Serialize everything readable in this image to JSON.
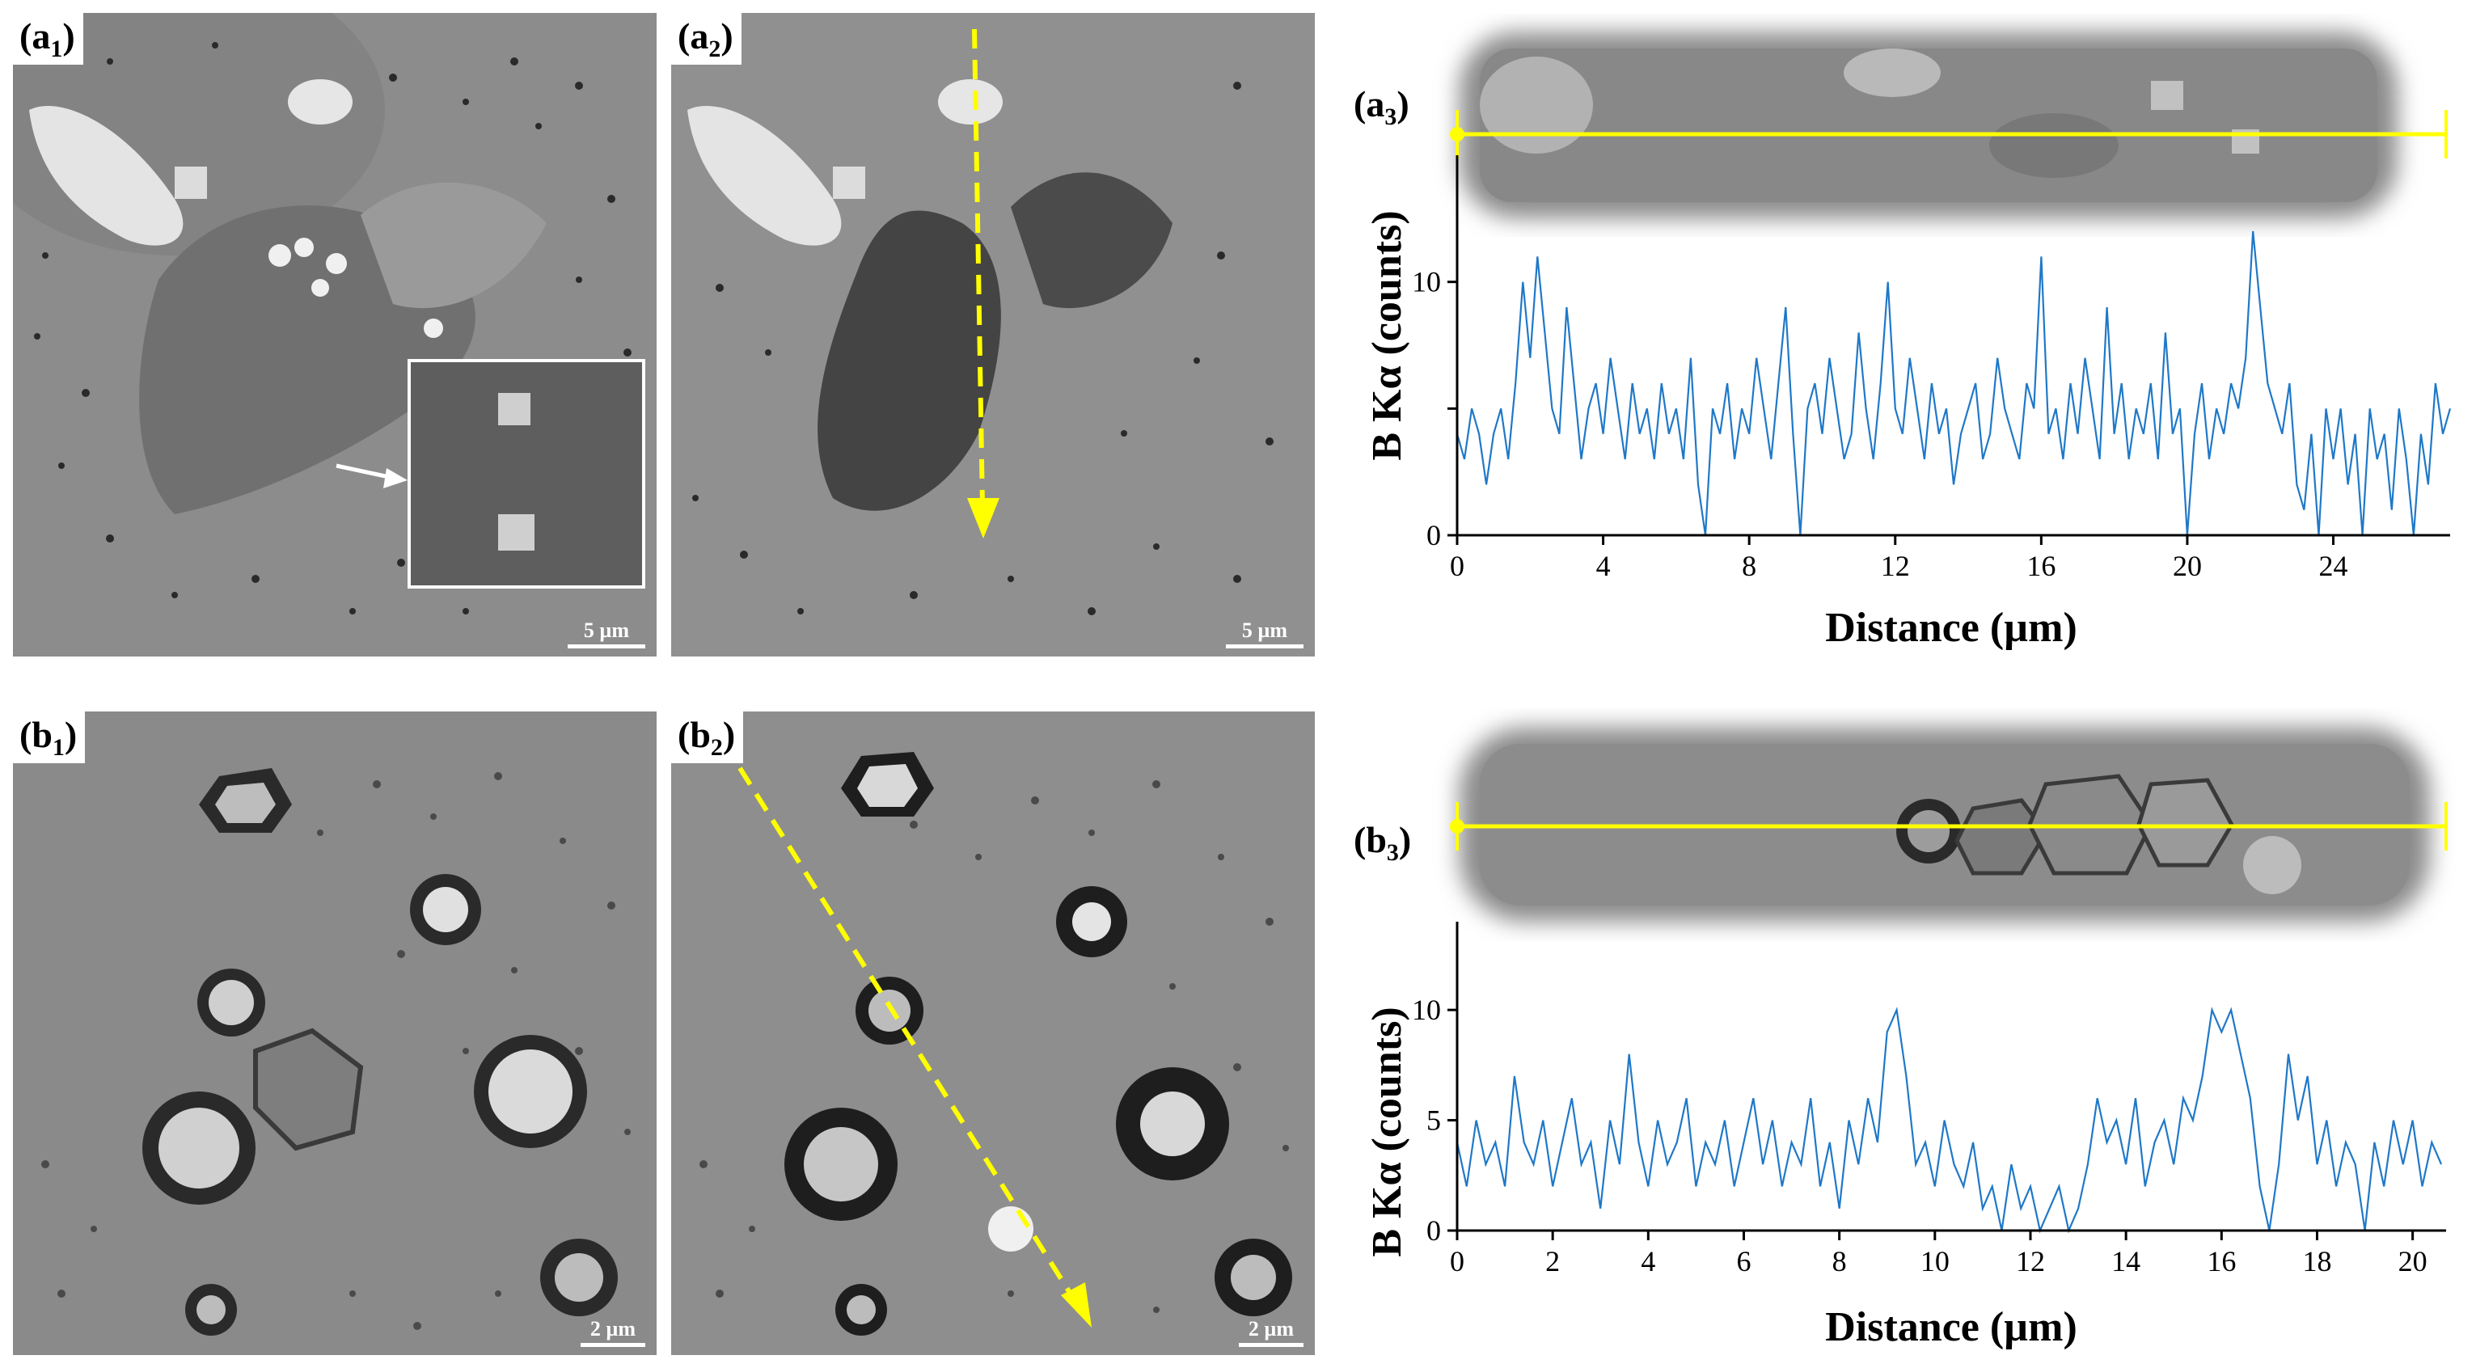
{
  "colors": {
    "trace": "#1f78c8",
    "linescan": "#ffff00",
    "arrow": "#ffff00",
    "inset_border": "#ffffff",
    "scale_text": "#ffffff"
  },
  "panels": {
    "a1": {
      "label_main": "(a",
      "label_sub": "1",
      "label_close": ")",
      "scale": "5 µm"
    },
    "a2": {
      "label_main": "(a",
      "label_sub": "2",
      "label_close": ")",
      "scale": "5 µm"
    },
    "a3": {
      "label_main": "(a",
      "label_sub": "3",
      "label_close": ")"
    },
    "b1": {
      "label_main": "(b",
      "label_sub": "1",
      "label_close": ")",
      "scale": "2 µm"
    },
    "b2": {
      "label_main": "(b",
      "label_sub": "2",
      "label_close": ")",
      "scale": "2 µm"
    },
    "b3": {
      "label_main": "(b",
      "label_sub": "3",
      "label_close": ")"
    }
  },
  "chart_data": [
    {
      "panel": "a3",
      "type": "line",
      "xlabel": "Distance (µm)",
      "ylabel": "B Kα (counts)",
      "xlim": [
        0,
        27.2
      ],
      "ylim": [
        0,
        15
      ],
      "xticks": [
        0,
        4,
        8,
        12,
        16,
        20,
        24
      ],
      "yticks": [
        0,
        5,
        10
      ],
      "ytick_labels": [
        "0",
        "",
        "10"
      ],
      "series": [
        {
          "points": [
            [
              0.0,
              4
            ],
            [
              0.2,
              3
            ],
            [
              0.4,
              5
            ],
            [
              0.6,
              4
            ],
            [
              0.8,
              2
            ],
            [
              1.0,
              4
            ],
            [
              1.2,
              5
            ],
            [
              1.4,
              3
            ],
            [
              1.6,
              6
            ],
            [
              1.8,
              10
            ],
            [
              2.0,
              7
            ],
            [
              2.2,
              11
            ],
            [
              2.4,
              8
            ],
            [
              2.6,
              5
            ],
            [
              2.8,
              4
            ],
            [
              3.0,
              9
            ],
            [
              3.2,
              6
            ],
            [
              3.4,
              3
            ],
            [
              3.6,
              5
            ],
            [
              3.8,
              6
            ],
            [
              4.0,
              4
            ],
            [
              4.2,
              7
            ],
            [
              4.4,
              5
            ],
            [
              4.6,
              3
            ],
            [
              4.8,
              6
            ],
            [
              5.0,
              4
            ],
            [
              5.2,
              5
            ],
            [
              5.4,
              3
            ],
            [
              5.6,
              6
            ],
            [
              5.8,
              4
            ],
            [
              6.0,
              5
            ],
            [
              6.2,
              3
            ],
            [
              6.4,
              7
            ],
            [
              6.6,
              2
            ],
            [
              6.8,
              0
            ],
            [
              7.0,
              5
            ],
            [
              7.2,
              4
            ],
            [
              7.4,
              6
            ],
            [
              7.6,
              3
            ],
            [
              7.8,
              5
            ],
            [
              8.0,
              4
            ],
            [
              8.2,
              7
            ],
            [
              8.4,
              5
            ],
            [
              8.6,
              3
            ],
            [
              8.8,
              6
            ],
            [
              9.0,
              9
            ],
            [
              9.2,
              4
            ],
            [
              9.4,
              0
            ],
            [
              9.6,
              5
            ],
            [
              9.8,
              6
            ],
            [
              10.0,
              4
            ],
            [
              10.2,
              7
            ],
            [
              10.4,
              5
            ],
            [
              10.6,
              3
            ],
            [
              10.8,
              4
            ],
            [
              11.0,
              8
            ],
            [
              11.2,
              5
            ],
            [
              11.4,
              3
            ],
            [
              11.6,
              6
            ],
            [
              11.8,
              10
            ],
            [
              12.0,
              5
            ],
            [
              12.2,
              4
            ],
            [
              12.4,
              7
            ],
            [
              12.6,
              5
            ],
            [
              12.8,
              3
            ],
            [
              13.0,
              6
            ],
            [
              13.2,
              4
            ],
            [
              13.4,
              5
            ],
            [
              13.6,
              2
            ],
            [
              13.8,
              4
            ],
            [
              14.0,
              5
            ],
            [
              14.2,
              6
            ],
            [
              14.4,
              3
            ],
            [
              14.6,
              4
            ],
            [
              14.8,
              7
            ],
            [
              15.0,
              5
            ],
            [
              15.2,
              4
            ],
            [
              15.4,
              3
            ],
            [
              15.6,
              6
            ],
            [
              15.8,
              5
            ],
            [
              16.0,
              11
            ],
            [
              16.2,
              4
            ],
            [
              16.4,
              5
            ],
            [
              16.6,
              3
            ],
            [
              16.8,
              6
            ],
            [
              17.0,
              4
            ],
            [
              17.2,
              7
            ],
            [
              17.4,
              5
            ],
            [
              17.6,
              3
            ],
            [
              17.8,
              9
            ],
            [
              18.0,
              4
            ],
            [
              18.2,
              6
            ],
            [
              18.4,
              3
            ],
            [
              18.6,
              5
            ],
            [
              18.8,
              4
            ],
            [
              19.0,
              6
            ],
            [
              19.2,
              3
            ],
            [
              19.4,
              8
            ],
            [
              19.6,
              4
            ],
            [
              19.8,
              5
            ],
            [
              20.0,
              0
            ],
            [
              20.2,
              4
            ],
            [
              20.4,
              6
            ],
            [
              20.6,
              3
            ],
            [
              20.8,
              5
            ],
            [
              21.0,
              4
            ],
            [
              21.2,
              6
            ],
            [
              21.4,
              5
            ],
            [
              21.6,
              7
            ],
            [
              21.8,
              12
            ],
            [
              22.0,
              9
            ],
            [
              22.2,
              6
            ],
            [
              22.4,
              5
            ],
            [
              22.6,
              4
            ],
            [
              22.8,
              6
            ],
            [
              23.0,
              2
            ],
            [
              23.2,
              1
            ],
            [
              23.4,
              4
            ],
            [
              23.6,
              0
            ],
            [
              23.8,
              5
            ],
            [
              24.0,
              3
            ],
            [
              24.2,
              5
            ],
            [
              24.4,
              2
            ],
            [
              24.6,
              4
            ],
            [
              24.8,
              0
            ],
            [
              25.0,
              5
            ],
            [
              25.2,
              3
            ],
            [
              25.4,
              4
            ],
            [
              25.6,
              1
            ],
            [
              25.8,
              5
            ],
            [
              26.0,
              3
            ],
            [
              26.2,
              0
            ],
            [
              26.4,
              4
            ],
            [
              26.6,
              2
            ],
            [
              26.8,
              6
            ],
            [
              27.0,
              4
            ],
            [
              27.2,
              5
            ]
          ]
        }
      ]
    },
    {
      "panel": "b3",
      "type": "line",
      "xlabel": "Distance (µm)",
      "ylabel": "B Kα (counts)",
      "xlim": [
        0,
        20.7
      ],
      "ylim": [
        0,
        14
      ],
      "xticks": [
        0,
        2,
        4,
        6,
        8,
        10,
        12,
        14,
        16,
        18,
        20
      ],
      "yticks": [
        0,
        5,
        10
      ],
      "ytick_labels": [
        "0",
        "5",
        "10"
      ],
      "series": [
        {
          "points": [
            [
              0.0,
              4
            ],
            [
              0.2,
              2
            ],
            [
              0.4,
              5
            ],
            [
              0.6,
              3
            ],
            [
              0.8,
              4
            ],
            [
              1.0,
              2
            ],
            [
              1.2,
              7
            ],
            [
              1.4,
              4
            ],
            [
              1.6,
              3
            ],
            [
              1.8,
              5
            ],
            [
              2.0,
              2
            ],
            [
              2.2,
              4
            ],
            [
              2.4,
              6
            ],
            [
              2.6,
              3
            ],
            [
              2.8,
              4
            ],
            [
              3.0,
              1
            ],
            [
              3.2,
              5
            ],
            [
              3.4,
              3
            ],
            [
              3.6,
              8
            ],
            [
              3.8,
              4
            ],
            [
              4.0,
              2
            ],
            [
              4.2,
              5
            ],
            [
              4.4,
              3
            ],
            [
              4.6,
              4
            ],
            [
              4.8,
              6
            ],
            [
              5.0,
              2
            ],
            [
              5.2,
              4
            ],
            [
              5.4,
              3
            ],
            [
              5.6,
              5
            ],
            [
              5.8,
              2
            ],
            [
              6.0,
              4
            ],
            [
              6.2,
              6
            ],
            [
              6.4,
              3
            ],
            [
              6.6,
              5
            ],
            [
              6.8,
              2
            ],
            [
              7.0,
              4
            ],
            [
              7.2,
              3
            ],
            [
              7.4,
              6
            ],
            [
              7.6,
              2
            ],
            [
              7.8,
              4
            ],
            [
              8.0,
              1
            ],
            [
              8.2,
              5
            ],
            [
              8.4,
              3
            ],
            [
              8.6,
              6
            ],
            [
              8.8,
              4
            ],
            [
              9.0,
              9
            ],
            [
              9.2,
              10
            ],
            [
              9.4,
              7
            ],
            [
              9.6,
              3
            ],
            [
              9.8,
              4
            ],
            [
              10.0,
              2
            ],
            [
              10.2,
              5
            ],
            [
              10.4,
              3
            ],
            [
              10.6,
              2
            ],
            [
              10.8,
              4
            ],
            [
              11.0,
              1
            ],
            [
              11.2,
              2
            ],
            [
              11.4,
              0
            ],
            [
              11.6,
              3
            ],
            [
              11.8,
              1
            ],
            [
              12.0,
              2
            ],
            [
              12.2,
              0
            ],
            [
              12.4,
              1
            ],
            [
              12.6,
              2
            ],
            [
              12.8,
              0
            ],
            [
              13.0,
              1
            ],
            [
              13.2,
              3
            ],
            [
              13.4,
              6
            ],
            [
              13.6,
              4
            ],
            [
              13.8,
              5
            ],
            [
              14.0,
              3
            ],
            [
              14.2,
              6
            ],
            [
              14.4,
              2
            ],
            [
              14.6,
              4
            ],
            [
              14.8,
              5
            ],
            [
              15.0,
              3
            ],
            [
              15.2,
              6
            ],
            [
              15.4,
              5
            ],
            [
              15.6,
              7
            ],
            [
              15.8,
              10
            ],
            [
              16.0,
              9
            ],
            [
              16.2,
              10
            ],
            [
              16.4,
              8
            ],
            [
              16.6,
              6
            ],
            [
              16.8,
              2
            ],
            [
              17.0,
              0
            ],
            [
              17.2,
              3
            ],
            [
              17.4,
              8
            ],
            [
              17.6,
              5
            ],
            [
              17.8,
              7
            ],
            [
              18.0,
              3
            ],
            [
              18.2,
              5
            ],
            [
              18.4,
              2
            ],
            [
              18.6,
              4
            ],
            [
              18.8,
              3
            ],
            [
              19.0,
              0
            ],
            [
              19.2,
              4
            ],
            [
              19.4,
              2
            ],
            [
              19.6,
              5
            ],
            [
              19.8,
              3
            ],
            [
              20.0,
              5
            ],
            [
              20.2,
              2
            ],
            [
              20.4,
              4
            ],
            [
              20.6,
              3
            ]
          ]
        }
      ]
    }
  ]
}
